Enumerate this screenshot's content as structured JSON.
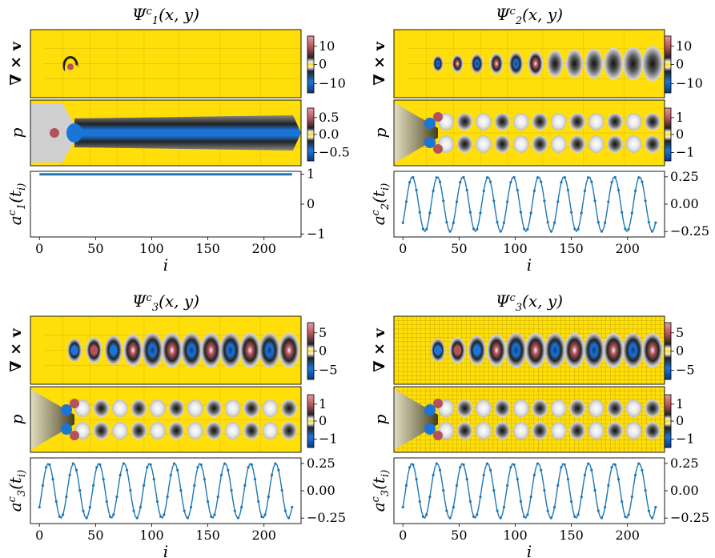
{
  "colors": {
    "field_background": "#ffde0a",
    "positive": "#b3525a",
    "negative": "#1a75d8",
    "neutral": "#f2f2f2",
    "dark": "#111111",
    "line": "#1f77b4"
  },
  "modes": [
    {
      "title": "Ψ^c_1(x, y)",
      "vort_label": "∇ × v",
      "pres_label": "p",
      "coef_label": "a^c_1(t_i)",
      "x_label": "i",
      "vort_cbar": [
        "10",
        "0",
        "−10"
      ],
      "pres_cbar": [
        "0.5",
        "0.0",
        "−0.5"
      ],
      "vort_pattern": "near-body",
      "pres_pattern": "jet",
      "gridded": false
    },
    {
      "title": "Ψ^c_2(x, y)",
      "vort_label": "∇ × v",
      "pres_label": "p",
      "coef_label": "a^c_2(t_i)",
      "x_label": "i",
      "vort_cbar": [
        "10",
        "0",
        "−10"
      ],
      "pres_cbar": [
        "1",
        "0",
        "−1"
      ],
      "vort_pattern": "wake-decaying",
      "pres_pattern": "wake-pairs",
      "gridded": false
    },
    {
      "title": "Ψ^c_3(x, y)",
      "vort_label": "∇ × v",
      "pres_label": "p",
      "coef_label": "a^c_3(t_i)",
      "x_label": "i",
      "vort_cbar": [
        "5",
        "0",
        "−5"
      ],
      "pres_cbar": [
        "1",
        "0",
        "−1"
      ],
      "vort_pattern": "wake-strong",
      "pres_pattern": "wake-pairs",
      "gridded": false
    },
    {
      "title": "Ψ^c_3(x, y)",
      "vort_label": "∇ × v",
      "pres_label": "p",
      "coef_label": "a^c_3(t_i)",
      "x_label": "i",
      "vort_cbar": [
        "5",
        "0",
        "−5"
      ],
      "pres_cbar": [
        "1",
        "0",
        "−1"
      ],
      "vort_pattern": "wake-strong",
      "pres_pattern": "wake-pairs",
      "gridded": true
    }
  ],
  "chart_data": [
    {
      "type": "line",
      "title": "a^c_1(t_i)",
      "xlabel": "i",
      "ylabel": "a^c_1(t_i)",
      "xlim": [
        -8,
        233
      ],
      "ylim": [
        -1.1,
        1.1
      ],
      "x_ticks": [
        "0",
        "50",
        "100",
        "150",
        "200"
      ],
      "y_ticks": [
        "1",
        "0",
        "−1"
      ],
      "y_tick_values": [
        1,
        0,
        -1
      ],
      "x_range": [
        0,
        225
      ],
      "constant_value": 1.0,
      "markers": false
    },
    {
      "type": "line",
      "title": "a^c_2(t_i)",
      "xlabel": "i",
      "ylabel": "a^c_2(t_i)",
      "xlim": [
        -8,
        233
      ],
      "ylim": [
        -0.3,
        0.3
      ],
      "x_ticks": [
        "0",
        "50",
        "100",
        "150",
        "200"
      ],
      "y_ticks": [
        "0.25",
        "0.00",
        "−0.25"
      ],
      "y_tick_values": [
        0.25,
        0,
        -0.25
      ],
      "x_range": [
        0,
        225
      ],
      "amplitude": 0.25,
      "period": 22.5,
      "first_value": -0.17,
      "markers": true
    },
    {
      "type": "line",
      "title": "a^c_3(t_i)",
      "xlabel": "i",
      "ylabel": "a^c_3(t_i)",
      "xlim": [
        -8,
        233
      ],
      "ylim": [
        -0.3,
        0.3
      ],
      "x_ticks": [
        "0",
        "50",
        "100",
        "150",
        "200"
      ],
      "y_ticks": [
        "0.25",
        "0.00",
        "−0.25"
      ],
      "y_tick_values": [
        0.25,
        0,
        -0.25
      ],
      "x_range": [
        0,
        225
      ],
      "amplitude": 0.25,
      "period": 22.5,
      "first_value": -0.15,
      "markers": true
    },
    {
      "type": "line",
      "title": "a^c_3(t_i)",
      "xlabel": "i",
      "ylabel": "a^c_3(t_i)",
      "xlim": [
        -8,
        233
      ],
      "ylim": [
        -0.3,
        0.3
      ],
      "x_ticks": [
        "0",
        "50",
        "100",
        "150",
        "200"
      ],
      "y_ticks": [
        "0.25",
        "0.00",
        "−0.25"
      ],
      "y_tick_values": [
        0.25,
        0,
        -0.25
      ],
      "x_range": [
        0,
        225
      ],
      "amplitude": 0.25,
      "period": 22.5,
      "first_value": -0.15,
      "markers": true
    }
  ]
}
